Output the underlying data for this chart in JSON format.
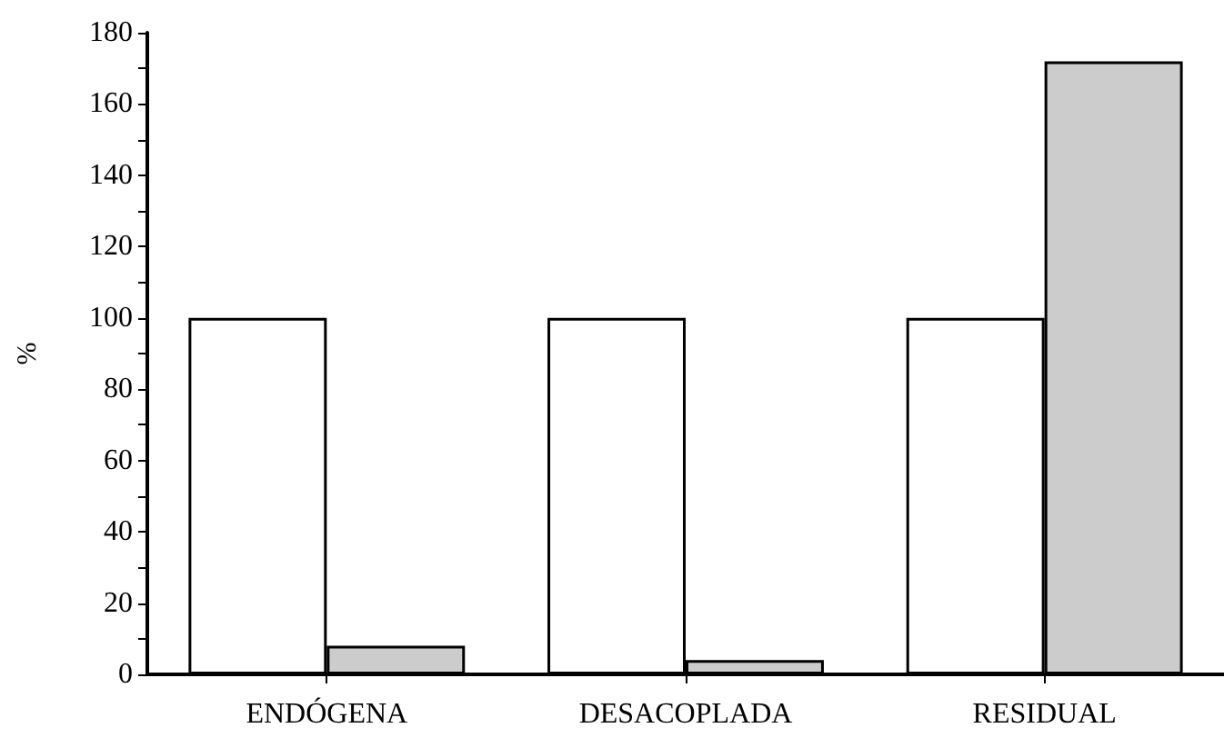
{
  "chart_data": {
    "type": "bar",
    "ylabel": "%",
    "categories": [
      "ENDÓGENA",
      "DESACOPLADA",
      "RESIDUAL"
    ],
    "series": [
      {
        "color": "#ffffff",
        "values": [
          100,
          100,
          100
        ]
      },
      {
        "color": "#cccccc",
        "values": [
          8,
          4,
          172
        ]
      }
    ],
    "ylim": [
      0,
      180
    ],
    "yticks": [
      0,
      20,
      40,
      60,
      80,
      100,
      120,
      140,
      160,
      180
    ],
    "grid": false
  }
}
